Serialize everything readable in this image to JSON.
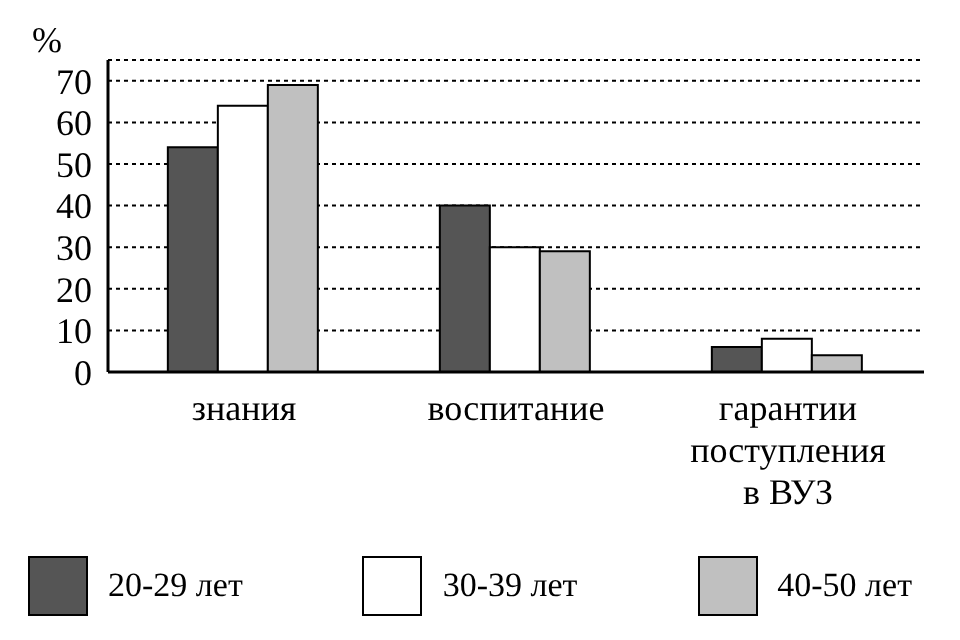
{
  "chart_data": {
    "type": "bar",
    "ylabel": "%",
    "categories": [
      "знания",
      "воспитание",
      "гарантии поступления в ВУЗ"
    ],
    "series": [
      {
        "name": "20-29 лет",
        "color": "#555555",
        "values": [
          54,
          40,
          6
        ]
      },
      {
        "name": "30-39 лет",
        "color": "#ffffff",
        "values": [
          64,
          30,
          8
        ]
      },
      {
        "name": "40-50 лет",
        "color": "#c0c0c0",
        "values": [
          69,
          29,
          4
        ]
      }
    ],
    "ylim": [
      0,
      75
    ],
    "yticks": [
      0,
      10,
      20,
      30,
      40,
      50,
      60,
      70
    ],
    "grid": "y",
    "legend": "bottom"
  }
}
